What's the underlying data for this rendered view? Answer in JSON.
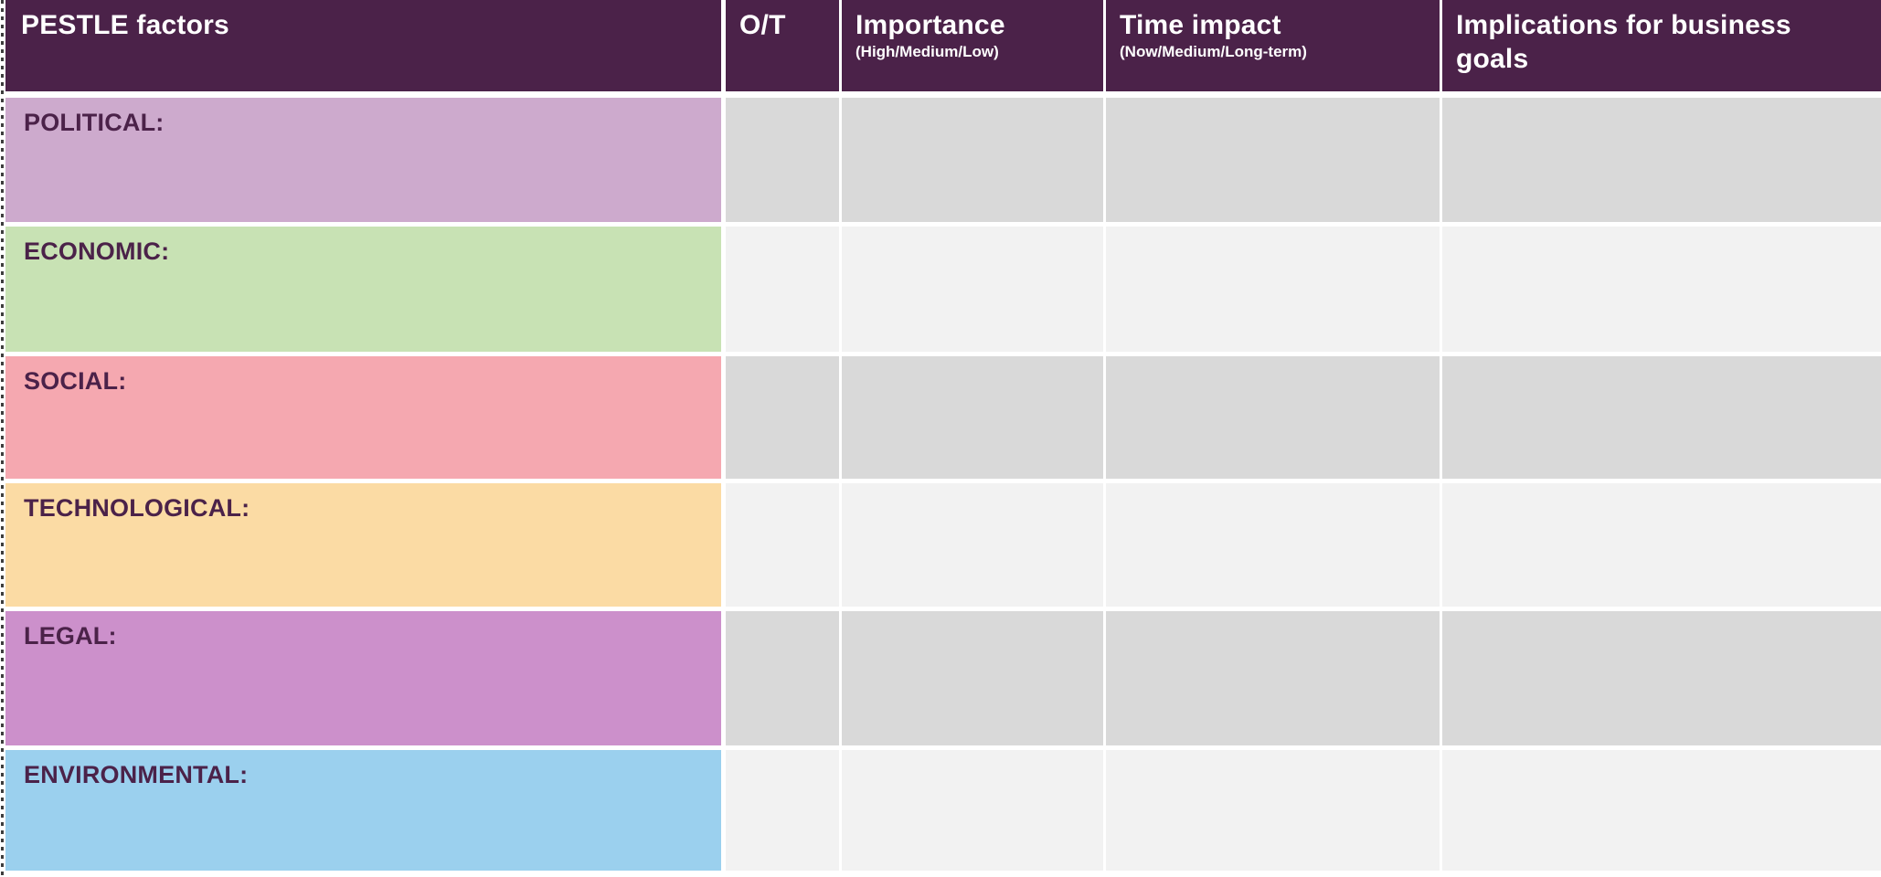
{
  "table": {
    "title_context": "PESTLE factors table",
    "header_bg": "#4b2249",
    "header_text_color": "#ffffff",
    "label_text_color": "#4b2249",
    "columns": [
      {
        "label": "PESTLE factors",
        "sublabel": ""
      },
      {
        "label": "O/T",
        "sublabel": ""
      },
      {
        "label": "Importance",
        "sublabel": "(High/Medium/Low)"
      },
      {
        "label": "Time impact",
        "sublabel": "(Now/Medium/Long-term)"
      },
      {
        "label": "Implications for business goals",
        "sublabel": ""
      }
    ],
    "rows": [
      {
        "label": "POLITICAL:",
        "color": "#cdaacd",
        "band": "#d9d9d9",
        "cells": [
          "",
          "",
          "",
          ""
        ]
      },
      {
        "label": "ECONOMIC:",
        "color": "#c8e2b4",
        "band": "#f2f2f2",
        "cells": [
          "",
          "",
          "",
          ""
        ]
      },
      {
        "label": "SOCIAL:",
        "color": "#f5a8b0",
        "band": "#d9d9d9",
        "cells": [
          "",
          "",
          "",
          ""
        ]
      },
      {
        "label": "TECHNOLOGICAL:",
        "color": "#fbdba4",
        "band": "#f2f2f2",
        "cells": [
          "",
          "",
          "",
          ""
        ]
      },
      {
        "label": "LEGAL:",
        "color": "#cc90cb",
        "band": "#d9d9d9",
        "cells": [
          "",
          "",
          "",
          ""
        ]
      },
      {
        "label": "ENVIRONMENTAL:",
        "color": "#9bd0ee",
        "band": "#f2f2f2",
        "cells": [
          "",
          "",
          "",
          ""
        ]
      }
    ]
  }
}
